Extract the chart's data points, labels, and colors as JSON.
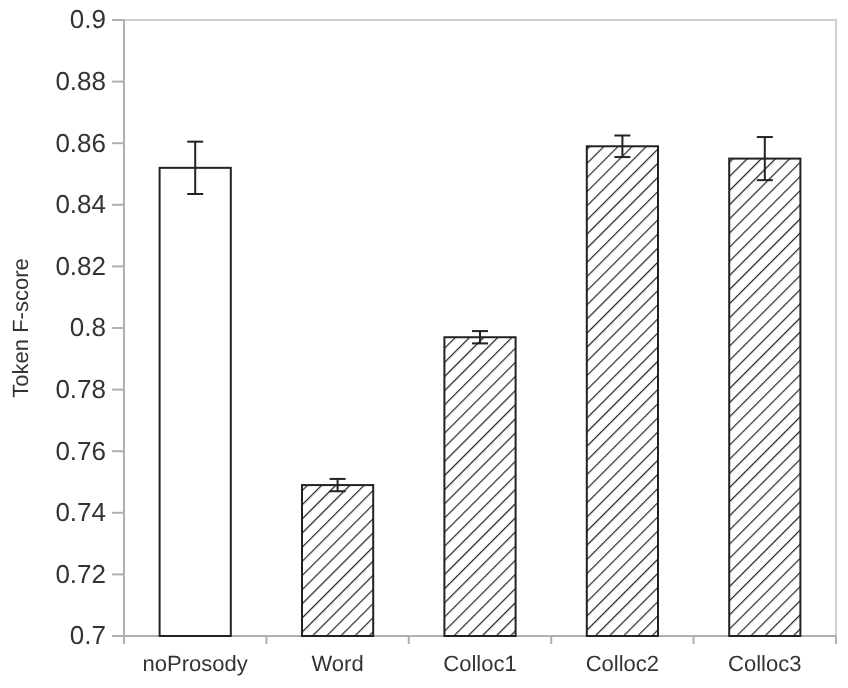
{
  "chart_data": {
    "type": "bar",
    "ylabel": "Token F-score",
    "categories": [
      "noProsody",
      "Word",
      "Colloc1",
      "Colloc2",
      "Colloc3"
    ],
    "values": [
      0.852,
      0.749,
      0.797,
      0.859,
      0.855
    ],
    "errors": [
      0.0085,
      0.002,
      0.002,
      0.0035,
      0.007
    ],
    "colors": [
      "#ffffff",
      "#222222",
      "#222222",
      "#222222",
      "#222222"
    ],
    "ylim": [
      0.7,
      0.9
    ],
    "yticks": [
      0.7,
      0.72,
      0.74,
      0.76,
      0.78,
      0.8,
      0.82,
      0.84,
      0.86,
      0.88,
      0.9
    ],
    "grid": false
  }
}
